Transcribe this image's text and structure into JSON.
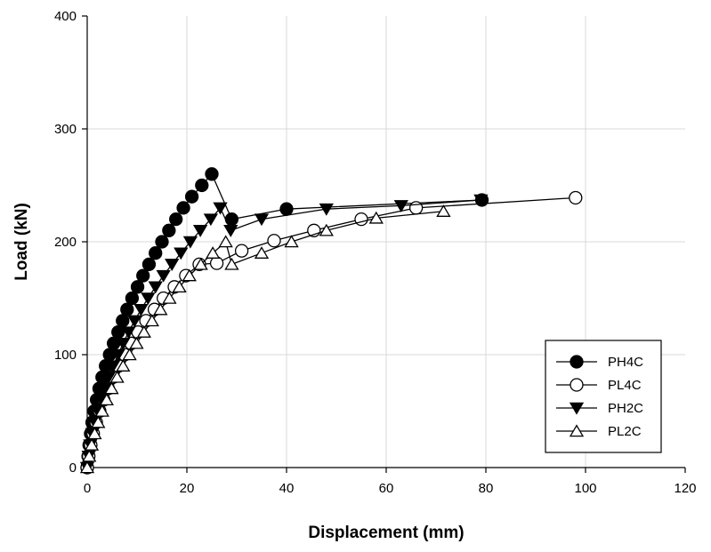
{
  "chart_data": {
    "type": "line",
    "title": "",
    "xlabel": "Displacement (mm)",
    "ylabel": "Load (kN)",
    "xlim": [
      0,
      120
    ],
    "ylim": [
      0,
      400
    ],
    "xticks": [
      0,
      20,
      40,
      60,
      80,
      100,
      120
    ],
    "yticks": [
      0,
      100,
      200,
      300,
      400
    ],
    "grid": true,
    "legend_position": "bottom-right",
    "series": [
      {
        "name": "PH4C",
        "marker": "circle-filled",
        "x": [
          0,
          0.2,
          0.4,
          0.7,
          1.0,
          1.4,
          1.9,
          2.4,
          3.0,
          3.7,
          4.5,
          5.3,
          6.2,
          7.1,
          8.0,
          9.0,
          10.1,
          11.2,
          12.4,
          13.7,
          15.0,
          16.4,
          17.8,
          19.3,
          21.0,
          23.0,
          25.0,
          29.0,
          40.0,
          79.2
        ],
        "y": [
          0,
          10,
          20,
          30,
          40,
          50,
          60,
          70,
          80,
          90,
          100,
          110,
          120,
          130,
          140,
          150,
          160,
          170,
          180,
          190,
          200,
          210,
          220,
          230,
          240,
          250,
          260,
          220,
          229,
          237
        ],
        "fill": "#000000"
      },
      {
        "name": "PL4C",
        "marker": "circle-open",
        "x": [
          0,
          0.3,
          0.7,
          1.2,
          1.8,
          2.5,
          3.3,
          4.2,
          5.2,
          6.3,
          7.5,
          8.8,
          10.2,
          11.8,
          13.5,
          15.3,
          17.5,
          19.8,
          22.5,
          26.0,
          31.0,
          37.5,
          45.5,
          55.0,
          66.0,
          98.0
        ],
        "y": [
          0,
          10,
          20,
          30,
          40,
          50,
          60,
          70,
          80,
          90,
          100,
          110,
          120,
          130,
          140,
          150,
          160,
          170,
          180,
          181,
          192,
          201,
          210,
          220,
          230,
          239
        ],
        "fill": "#ffffff"
      },
      {
        "name": "PH2C",
        "marker": "triangle-down-filled",
        "x": [
          0,
          0.3,
          0.6,
          1.0,
          1.5,
          2.1,
          2.8,
          3.5,
          4.3,
          5.2,
          6.2,
          7.2,
          8.3,
          9.5,
          10.8,
          12.2,
          13.7,
          15.3,
          17.0,
          18.8,
          20.7,
          22.7,
          24.8,
          26.7,
          28.8,
          35.0,
          48.0,
          63.0,
          79.0
        ],
        "y": [
          0,
          10,
          20,
          30,
          40,
          50,
          60,
          70,
          80,
          90,
          100,
          110,
          120,
          130,
          140,
          150,
          160,
          170,
          180,
          190,
          200,
          210,
          220,
          230,
          210,
          220,
          229,
          232,
          237
        ],
        "fill": "#000000"
      },
      {
        "name": "PL2C",
        "marker": "triangle-up-open",
        "x": [
          0,
          0.4,
          0.9,
          1.5,
          2.2,
          3.0,
          3.9,
          4.9,
          6.0,
          7.2,
          8.5,
          9.9,
          11.4,
          13.0,
          14.7,
          16.5,
          18.5,
          20.5,
          22.8,
          25.2,
          27.8,
          29.0,
          35.0,
          41.0,
          48.0,
          58.0,
          71.5
        ],
        "y": [
          0,
          10,
          20,
          30,
          40,
          50,
          60,
          70,
          80,
          90,
          100,
          110,
          120,
          130,
          140,
          150,
          160,
          170,
          180,
          190,
          200,
          180,
          190,
          200,
          210,
          221,
          227
        ],
        "fill": "#ffffff"
      }
    ]
  }
}
